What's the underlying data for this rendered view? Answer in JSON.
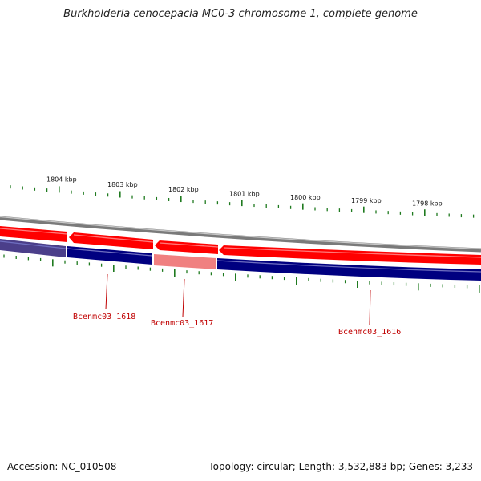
{
  "title": "Burkholderia cenocepacia MC0-3 chromosome 1, complete genome",
  "footer": {
    "accession": "Accession: NC_010508",
    "summary": "Topology: circular; Length: 3,532,883 bp; Genes: 3,233"
  },
  "ruler": [
    {
      "label": "1804 kbp",
      "position_kbp": 1804
    },
    {
      "label": "1803 kbp",
      "position_kbp": 1803
    },
    {
      "label": "1802 kbp",
      "position_kbp": 1802
    },
    {
      "label": "1801 kbp",
      "position_kbp": 1801
    },
    {
      "label": "1800 kbp",
      "position_kbp": 1800
    },
    {
      "label": "1799 kbp",
      "position_kbp": 1799
    },
    {
      "label": "1798 kbp",
      "position_kbp": 1798
    }
  ],
  "genes": [
    {
      "name": "Bcenmc03_1618"
    },
    {
      "name": "Bcenmc03_1617"
    },
    {
      "name": "Bcenmc03_1616"
    }
  ],
  "colors": {
    "forward_strand": "#ff0000",
    "reverse_strand": "#000080",
    "highlight_strand": "#f08080",
    "backbone": "#808080",
    "ticks": "#1f7a1f",
    "label": "#c00000"
  }
}
